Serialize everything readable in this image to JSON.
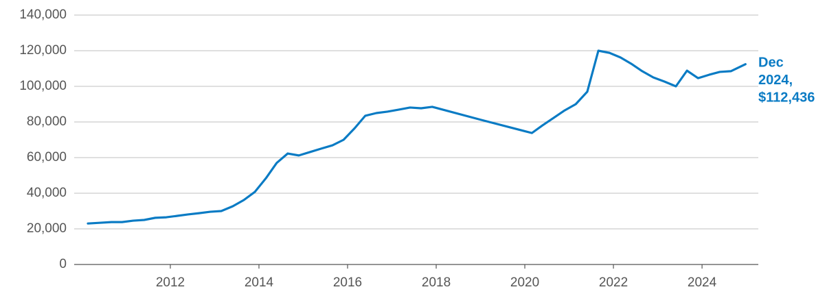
{
  "chart_data": {
    "type": "line",
    "x": [
      2010.14,
      2010.4,
      2010.67,
      2010.91,
      2011.16,
      2011.41,
      2011.66,
      2011.91,
      2012.16,
      2012.4,
      2012.65,
      2012.9,
      2013.15,
      2013.41,
      2013.66,
      2013.91,
      2014.16,
      2014.4,
      2014.65,
      2014.9,
      2015.15,
      2015.4,
      2015.66,
      2015.91,
      2016.16,
      2016.4,
      2016.65,
      2016.9,
      2017.15,
      2017.41,
      2017.66,
      2017.91,
      2019.01,
      2020.16,
      2020.4,
      2020.65,
      2020.9,
      2021.15,
      2021.41,
      2021.66,
      2021.91,
      2022.16,
      2022.4,
      2022.65,
      2022.9,
      2023.15,
      2023.41,
      2023.66,
      2023.91,
      2024.16,
      2024.4,
      2024.65,
      2024.98
    ],
    "series": [
      {
        "color": "#0a7bc4",
        "values": [
          23000,
          23400,
          23800,
          23800,
          24600,
          25000,
          26200,
          26500,
          27300,
          28100,
          28800,
          29600,
          30000,
          32700,
          36200,
          40800,
          48500,
          57000,
          62300,
          61200,
          63100,
          65000,
          66900,
          70000,
          76500,
          83500,
          85000,
          85800,
          86900,
          88100,
          87700,
          88500,
          81200,
          73800,
          78100,
          82300,
          86500,
          90000,
          97000,
          120000,
          118800,
          116200,
          112700,
          108500,
          105000,
          102700,
          100000,
          108800,
          104600,
          106500,
          108100,
          108500,
          112436
        ]
      }
    ],
    "annotation": [
      "Dec",
      "2024,",
      "$112,436"
    ],
    "xlim": [
      2009.83,
      2025.27
    ],
    "xticks": [
      2012,
      2014,
      2016,
      2018,
      2020,
      2022,
      2024
    ],
    "ylim": [
      0,
      140000
    ],
    "yticks": [
      0,
      {
        "value": 20000,
        "label": "20,000"
      },
      {
        "value": 40000,
        "label": "40,000"
      },
      {
        "value": 60000,
        "label": "60,000"
      },
      {
        "value": 80000,
        "label": "80,000"
      },
      {
        "value": 100000,
        "label": "100,000"
      },
      {
        "value": 120000,
        "label": "120,000"
      },
      {
        "value": 140000,
        "label": "140,000"
      }
    ],
    "grid": true
  }
}
